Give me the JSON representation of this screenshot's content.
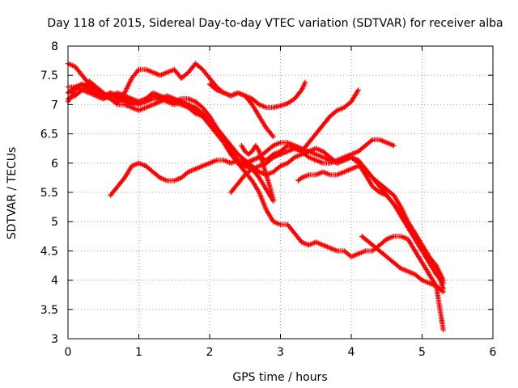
{
  "chart_data": {
    "type": "scatter",
    "title": "Day 118 of 2015, Sidereal Day-to-day VTEC variation (SDTVAR) for receiver alba",
    "xlabel": "GPS time / hours",
    "ylabel": "SDTVAR / TECUs",
    "xlim": [
      0,
      6
    ],
    "ylim": [
      3,
      8
    ],
    "xticks": [
      "0",
      "1",
      "2",
      "3",
      "4",
      "5",
      "6"
    ],
    "yticks": [
      "3",
      "3.5",
      "4",
      "4.5",
      "5",
      "5.5",
      "6",
      "6.5",
      "7",
      "7.5",
      "8"
    ],
    "grid": true,
    "marker": "plus",
    "color": "#ff0000",
    "series": [
      {
        "x": [
          0,
          0.1,
          0.2,
          0.3,
          0.4,
          0.5,
          0.6,
          0.7,
          0.8,
          0.9,
          1.0,
          1.1,
          1.2,
          1.3,
          1.4,
          1.5,
          1.6,
          1.7,
          1.8,
          1.9,
          2.0,
          2.1,
          2.2,
          2.3,
          2.4,
          2.5,
          2.6,
          2.7,
          2.8,
          2.9
        ],
        "y": [
          7.05,
          7.25,
          7.35,
          7.3,
          7.2,
          7.15,
          7.2,
          7.1,
          7.05,
          7.0,
          7.05,
          7.1,
          7.15,
          7.1,
          7.05,
          7.0,
          7.05,
          7.0,
          6.95,
          6.85,
          6.7,
          6.55,
          6.4,
          6.2,
          6.05,
          5.95,
          5.9,
          5.75,
          5.55,
          5.35
        ]
      },
      {
        "x": [
          0,
          0.1,
          0.2,
          0.3,
          0.4,
          0.5,
          0.6,
          0.7,
          0.8,
          0.9,
          1.0,
          1.1,
          1.2,
          1.3,
          1.4,
          1.5,
          1.6,
          1.7,
          1.8,
          1.9,
          2.0,
          2.1,
          2.2,
          2.3,
          2.4,
          2.5,
          2.6,
          2.7,
          2.8,
          2.9,
          3.0,
          3.1,
          3.2,
          3.3,
          3.4,
          3.5,
          3.6,
          3.7,
          3.8,
          3.9,
          4.0,
          4.1,
          4.2,
          4.3,
          4.4,
          4.5,
          4.6,
          4.7,
          4.8,
          4.9,
          5.0,
          5.1,
          5.2,
          5.3
        ],
        "y": [
          7.7,
          7.65,
          7.5,
          7.35,
          7.25,
          7.15,
          7.1,
          7.0,
          7.0,
          6.95,
          6.9,
          6.95,
          7.0,
          7.05,
          7.1,
          7.05,
          7.0,
          6.95,
          6.85,
          6.8,
          6.7,
          6.6,
          6.45,
          6.3,
          6.15,
          6.05,
          5.95,
          5.85,
          5.8,
          5.85,
          5.95,
          6.0,
          6.1,
          6.15,
          6.2,
          6.25,
          6.2,
          6.1,
          6.0,
          6.05,
          6.1,
          6.0,
          5.8,
          5.6,
          5.5,
          5.45,
          5.3,
          5.1,
          4.9,
          4.7,
          4.5,
          4.3,
          4.1,
          3.95
        ]
      },
      {
        "x": [
          0,
          0.1,
          0.2,
          0.3,
          0.4,
          0.5,
          0.6,
          0.7,
          0.8,
          0.9,
          1.0,
          1.1,
          1.2,
          1.3,
          1.4,
          1.5,
          1.6,
          1.7,
          1.8,
          1.9,
          2.0,
          2.1,
          2.2,
          2.3,
          2.4,
          2.5,
          2.6,
          2.7,
          2.8,
          2.9,
          3.0,
          3.1,
          3.2,
          3.3,
          3.4,
          3.5,
          3.6,
          3.7,
          3.8,
          3.9,
          4.0,
          4.1,
          4.2,
          4.3,
          4.4,
          4.5,
          4.6,
          4.7,
          4.8,
          4.9,
          5.0,
          5.1,
          5.2,
          5.3
        ],
        "y": [
          7.3,
          7.3,
          7.25,
          7.2,
          7.15,
          7.1,
          7.2,
          7.15,
          7.1,
          7.05,
          7.0,
          7.05,
          7.1,
          7.1,
          7.15,
          7.1,
          7.05,
          7.0,
          6.9,
          6.8,
          6.65,
          6.5,
          6.35,
          6.15,
          6.0,
          5.95,
          6.05,
          6.1,
          6.2,
          6.3,
          6.35,
          6.35,
          6.3,
          6.25,
          6.2,
          6.15,
          6.1,
          6.05,
          6.0,
          6.05,
          6.1,
          6.05,
          5.9,
          5.75,
          5.65,
          5.55,
          5.45,
          5.25,
          5.0,
          4.8,
          4.6,
          4.4,
          4.2,
          3.85
        ]
      },
      {
        "x": [
          0,
          0.1,
          0.2,
          0.3,
          0.4,
          0.5,
          0.6,
          0.7,
          0.8,
          0.9,
          1.0,
          1.1,
          1.2,
          1.3,
          1.4,
          1.5,
          1.6,
          1.7,
          1.8,
          1.9,
          2.0,
          2.1,
          2.2,
          2.3,
          2.4,
          2.5,
          2.6,
          2.7,
          2.8,
          2.9,
          3.0,
          3.1,
          3.2,
          3.3,
          3.4,
          3.5,
          3.6,
          3.7,
          3.8,
          3.9,
          4.0,
          4.1,
          4.2,
          4.3,
          4.4,
          4.5,
          4.6,
          4.7,
          4.8,
          4.9,
          5.0,
          5.1,
          5.2,
          5.3
        ],
        "y": [
          7.2,
          7.3,
          7.35,
          7.25,
          7.15,
          7.1,
          7.15,
          7.2,
          7.15,
          7.1,
          7.05,
          7.1,
          7.2,
          7.15,
          7.1,
          7.05,
          7.1,
          7.1,
          7.05,
          6.95,
          6.8,
          6.6,
          6.4,
          6.2,
          6.0,
          5.85,
          5.7,
          5.5,
          5.2,
          5.0,
          4.95,
          4.95,
          4.8,
          4.65,
          4.6,
          4.65,
          4.6,
          4.55,
          4.5,
          4.5,
          4.4,
          4.45,
          4.5,
          4.5,
          4.6,
          4.7,
          4.75,
          4.75,
          4.7,
          4.5,
          4.3,
          4.1,
          3.9,
          3.15
        ]
      },
      {
        "x": [
          0,
          0.1,
          0.2,
          0.3,
          0.4,
          0.5,
          0.6,
          0.7,
          0.8,
          0.9,
          1.0,
          1.1,
          1.2,
          1.3,
          1.4,
          1.5,
          1.6,
          1.7,
          1.8,
          1.9,
          2.0,
          2.1,
          2.2,
          2.3,
          2.4,
          2.5,
          2.6,
          2.7,
          2.8,
          2.9,
          3.0,
          3.1,
          3.2,
          3.3,
          3.35
        ],
        "y": [
          7.1,
          7.15,
          7.25,
          7.4,
          7.3,
          7.2,
          7.1,
          7.05,
          7.2,
          7.45,
          7.6,
          7.6,
          7.55,
          7.5,
          7.55,
          7.6,
          7.45,
          7.55,
          7.7,
          7.6,
          7.45,
          7.3,
          7.2,
          7.15,
          7.2,
          7.15,
          7.1,
          7.0,
          6.95,
          6.95,
          6.98,
          7.02,
          7.1,
          7.25,
          7.38
        ]
      },
      {
        "x": [
          0.6,
          0.7,
          0.8,
          0.9,
          1.0,
          1.1,
          1.2,
          1.3,
          1.4,
          1.5,
          1.6,
          1.7,
          1.8,
          1.9,
          2.0,
          2.1,
          2.2,
          2.3,
          2.4,
          2.5,
          2.6,
          2.7,
          2.8,
          2.9,
          3.0,
          3.1,
          3.2,
          3.3,
          3.4,
          3.5,
          3.6,
          3.7,
          3.8,
          3.9,
          4.0,
          4.1
        ],
        "y": [
          5.45,
          5.6,
          5.75,
          5.95,
          6.0,
          5.95,
          5.85,
          5.75,
          5.7,
          5.7,
          5.75,
          5.85,
          5.9,
          5.95,
          6.0,
          6.05,
          6.05,
          6.0,
          6.05,
          6.0,
          6.05,
          6.1,
          6.05,
          6.15,
          6.2,
          6.3,
          6.25,
          6.2,
          6.35,
          6.5,
          6.65,
          6.8,
          6.9,
          6.95,
          7.05,
          7.25
        ]
      },
      {
        "x": [
          2.3,
          2.4,
          2.5,
          2.6,
          2.7,
          2.8,
          2.9,
          3.0,
          3.1,
          3.2,
          3.3,
          3.4,
          3.5,
          3.6,
          3.7,
          3.8,
          3.9,
          4.0,
          4.1,
          4.2,
          4.3,
          4.4,
          4.5,
          4.6
        ],
        "y": [
          5.5,
          5.65,
          5.8,
          5.9,
          5.95,
          6.0,
          6.1,
          6.15,
          6.2,
          6.25,
          6.2,
          6.1,
          6.05,
          6.0,
          6.0,
          6.05,
          6.1,
          6.15,
          6.2,
          6.3,
          6.4,
          6.4,
          6.35,
          6.3
        ]
      },
      {
        "x": [
          3.25,
          3.3,
          3.4,
          3.5,
          3.6,
          3.7,
          3.8,
          3.9,
          4.0,
          4.1,
          4.2,
          4.3,
          4.4,
          4.5,
          4.6,
          4.7,
          4.8,
          4.9,
          5.0,
          5.1,
          5.2,
          5.3
        ],
        "y": [
          5.7,
          5.75,
          5.8,
          5.8,
          5.85,
          5.8,
          5.8,
          5.85,
          5.9,
          5.95,
          5.9,
          5.75,
          5.6,
          5.45,
          5.3,
          5.15,
          4.95,
          4.8,
          4.6,
          4.4,
          4.25,
          4.0
        ]
      },
      {
        "x": [
          2.45,
          2.5,
          2.55,
          2.6,
          2.65,
          2.7,
          2.75,
          2.8,
          2.85,
          2.9
        ],
        "y": [
          6.3,
          6.2,
          6.15,
          6.2,
          6.3,
          6.2,
          6.0,
          5.8,
          5.6,
          5.38
        ]
      },
      {
        "x": [
          2.0,
          2.1,
          2.2,
          2.3,
          2.4,
          2.5,
          2.6,
          2.7,
          2.8,
          2.9
        ],
        "y": [
          7.35,
          7.25,
          7.2,
          7.15,
          7.2,
          7.15,
          7.0,
          6.8,
          6.6,
          6.45
        ]
      },
      {
        "x": [
          4.15,
          4.2,
          4.3,
          4.4,
          4.5,
          4.6,
          4.7,
          4.8,
          4.9,
          5.0,
          5.1,
          5.2,
          5.3
        ],
        "y": [
          4.75,
          4.7,
          4.6,
          4.5,
          4.4,
          4.3,
          4.2,
          4.15,
          4.1,
          4.0,
          3.95,
          3.9,
          3.8
        ]
      }
    ]
  }
}
